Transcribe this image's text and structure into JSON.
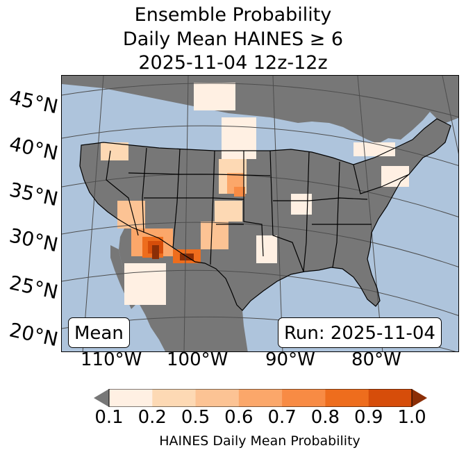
{
  "title": {
    "line1": "Ensemble Probability",
    "line2": "Daily Mean HAINES ≥ 6",
    "line3": "2025-11-04 12z-12z"
  },
  "map": {
    "projection": "Lambert Conformal",
    "region": "Continental United States",
    "lat_labels": [
      "45°N",
      "40°N",
      "35°N",
      "30°N",
      "25°N",
      "20°N"
    ],
    "lon_labels": [
      "110°W",
      "100°W",
      "90°W",
      "80°W"
    ],
    "colors": {
      "land": "#777777",
      "ocean": "#aec4dc",
      "borders": "#000000",
      "graticule": "#4d4d4d"
    }
  },
  "labels": {
    "mean": "Mean",
    "run": "Run: 2025-11-04"
  },
  "colorbar": {
    "label": "HAINES Daily Mean Probability",
    "ticks": [
      "0.1",
      "0.2",
      "0.5",
      "0.6",
      "0.7",
      "0.8",
      "0.9",
      "1.0"
    ],
    "bin_colors": [
      "#fff0e3",
      "#fdd9b4",
      "#fcc394",
      "#fba76a",
      "#f88b44",
      "#ee6d1d",
      "#d64d0a"
    ],
    "under_color": "#777777",
    "over_color": "#8b2e06"
  }
}
